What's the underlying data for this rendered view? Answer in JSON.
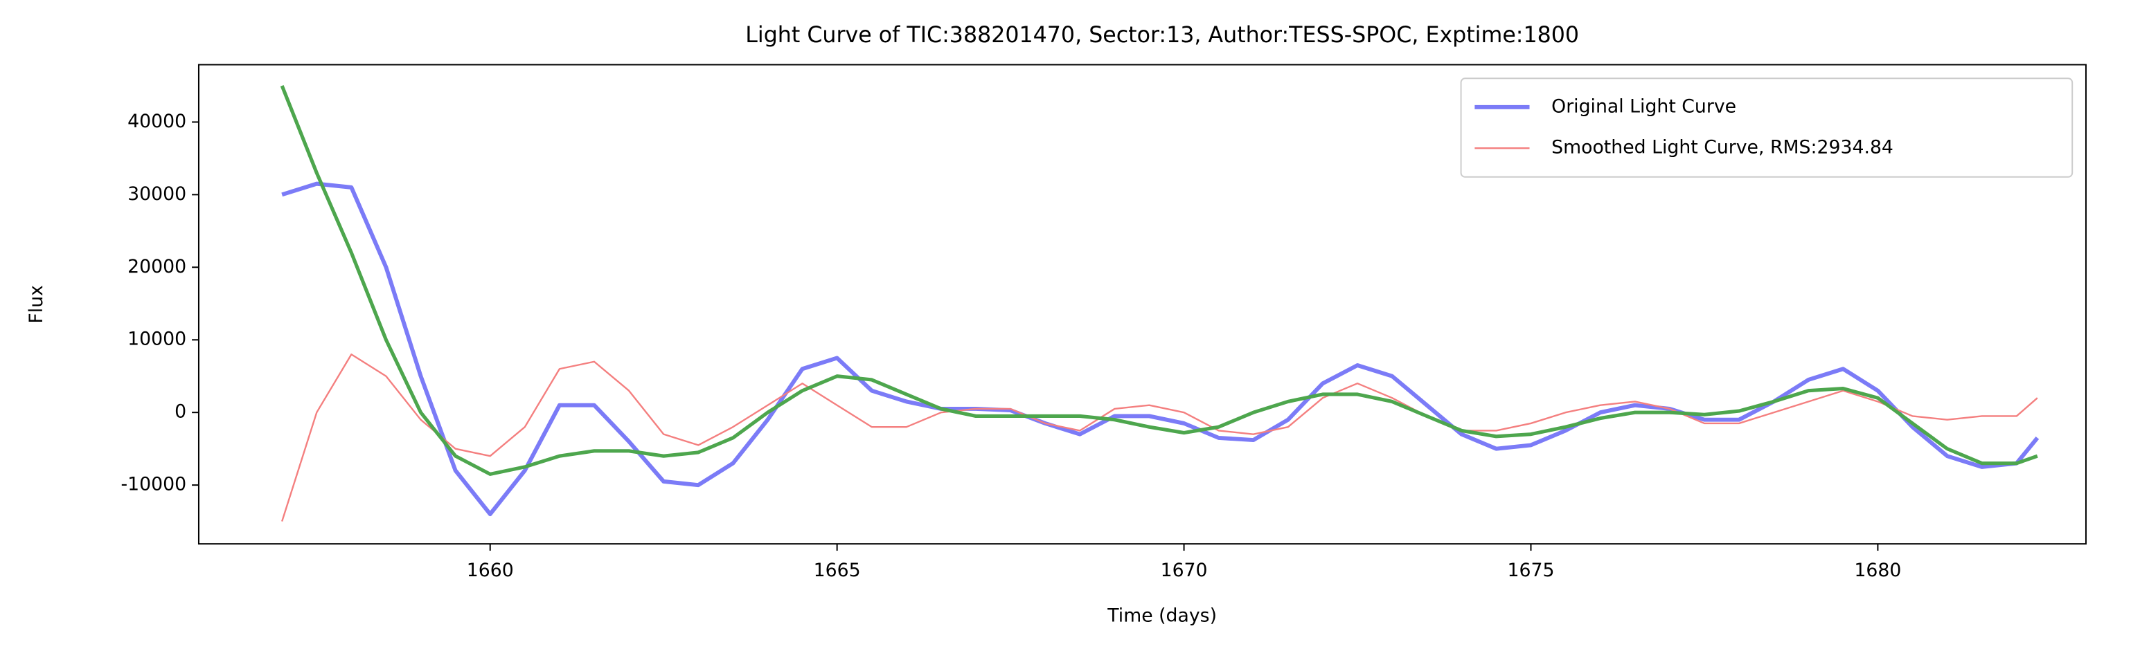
{
  "chart_data": {
    "type": "line",
    "title": "Light Curve of TIC:388201470, Sector:13, Author:TESS-SPOC, Exptime:1800",
    "x_label": "Time (days)",
    "y_label": "Flux",
    "x": [
      1657,
      1657.5,
      1658,
      1658.5,
      1659,
      1659.5,
      1660,
      1660.5,
      1661,
      1661.5,
      1662,
      1662.5,
      1663,
      1663.5,
      1664,
      1664.5,
      1665,
      1665.5,
      1666,
      1666.5,
      1667,
      1667.5,
      1668,
      1668.5,
      1669,
      1669.5,
      1670,
      1670.5,
      1671,
      1671.5,
      1672,
      1672.5,
      1673,
      1673.5,
      1674,
      1674.5,
      1675,
      1675.5,
      1676,
      1676.5,
      1677,
      1677.5,
      1678,
      1678.5,
      1679,
      1679.5,
      1680,
      1680.5,
      1681,
      1681.5,
      1682,
      1682.3
    ],
    "series": [
      {
        "name": "Original Light Curve",
        "color": "#7b7bf7",
        "width": 3,
        "values": [
          30000,
          31500,
          31000,
          20000,
          5000,
          -8000,
          -14000,
          -8000,
          1000,
          1000,
          -4000,
          -9500,
          -10000,
          -7000,
          -1000,
          6000,
          7500,
          3000,
          1500,
          500,
          500,
          300,
          -1500,
          -3000,
          -500,
          -500,
          -1500,
          -3500,
          -3800,
          -1000,
          4000,
          6500,
          5000,
          1000,
          -3000,
          -5000,
          -4500,
          -2500,
          0,
          1000,
          500,
          -1000,
          -1000,
          1500,
          4500,
          6000,
          3000,
          -2000,
          -6000,
          -7500,
          -7000,
          -3500
        ]
      },
      {
        "name": "Smoothed Light Curve, RMS:2934.84",
        "color": "#f47f7f",
        "width": 1.2,
        "values": [
          -15000,
          0,
          8000,
          5000,
          -1000,
          -5000,
          -6000,
          -2000,
          6000,
          7000,
          3000,
          -3000,
          -4500,
          -2000,
          1000,
          4000,
          1000,
          -2000,
          -2000,
          0,
          500,
          500,
          -1500,
          -2500,
          500,
          1000,
          0,
          -2500,
          -3000,
          -2000,
          2000,
          4000,
          2000,
          -500,
          -2500,
          -2500,
          -1500,
          0,
          1000,
          1500,
          500,
          -1500,
          -1500,
          0,
          1500,
          3000,
          1500,
          -500,
          -1000,
          -500,
          -500,
          2000
        ]
      },
      {
        "color": "#4da64d",
        "width": 2.6,
        "values": [
          45000,
          33000,
          22000,
          10000,
          0,
          -6000,
          -8500,
          -7500,
          -6000,
          -5300,
          -5300,
          -6000,
          -5500,
          -3500,
          0,
          3000,
          5000,
          4500,
          2500,
          500,
          -500,
          -500,
          -500,
          -500,
          -1000,
          -2000,
          -2800,
          -2000,
          0,
          1500,
          2500,
          2500,
          1500,
          -500,
          -2500,
          -3300,
          -3000,
          -2000,
          -800,
          0,
          0,
          -300,
          200,
          1500,
          3000,
          3300,
          2000,
          -1500,
          -5000,
          -7000,
          -7000,
          -6000
        ]
      }
    ],
    "xlim": [
      1655.8,
      1683.0
    ],
    "ylim": [
      -18100,
      47900
    ],
    "xticks": [
      1660,
      1665,
      1670,
      1675,
      1680
    ],
    "yticks": [
      -10000,
      0,
      10000,
      20000,
      30000,
      40000
    ],
    "grid": false,
    "legend": "upper right"
  }
}
